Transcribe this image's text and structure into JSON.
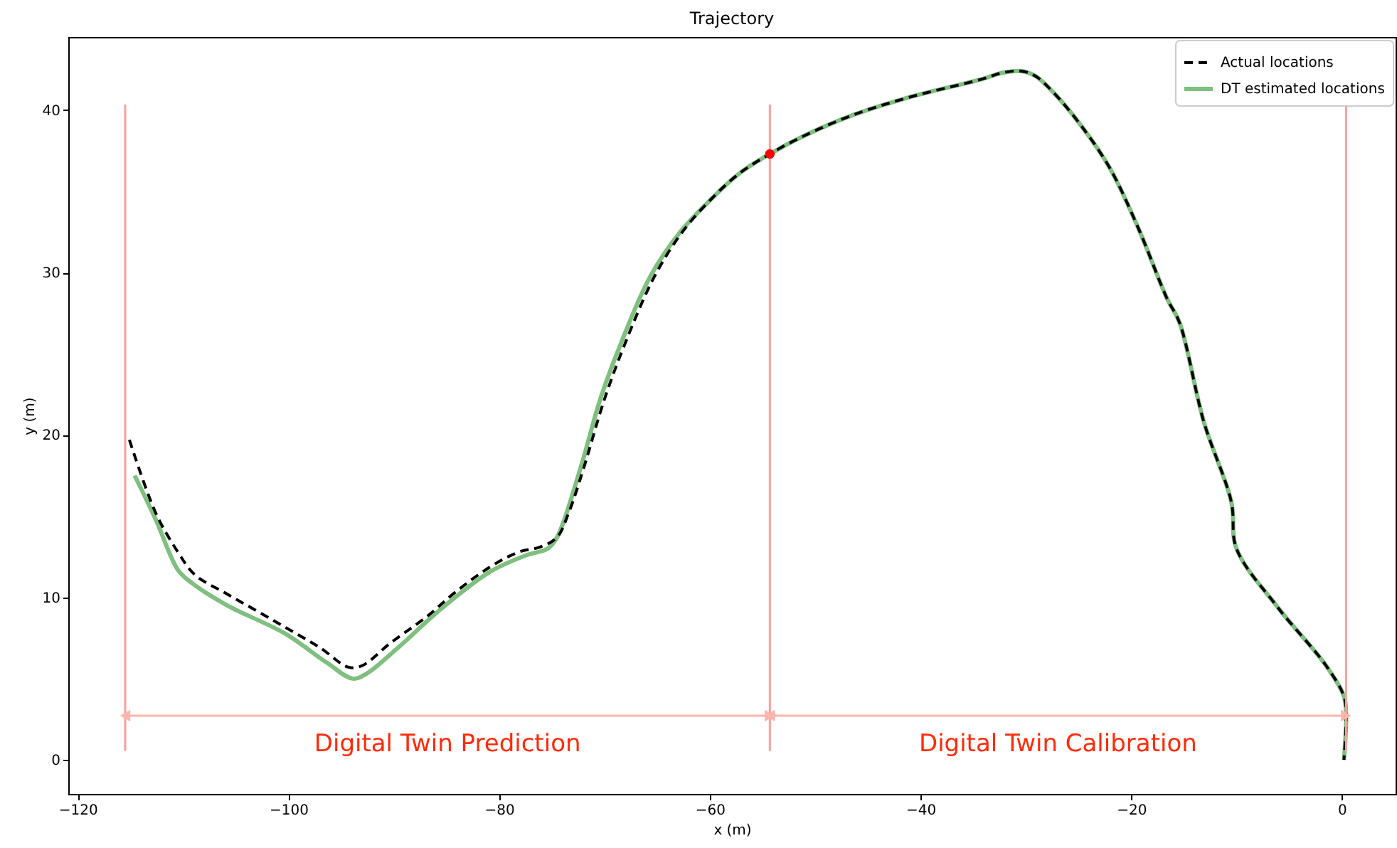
{
  "chart_data": {
    "type": "line",
    "title": "Trajectory",
    "xlabel": "x (m)",
    "ylabel": "y (m)",
    "xlim": [
      -120.9,
      5.1
    ],
    "ylim": [
      -2.1,
      44.5
    ],
    "xticks": [
      -120,
      -100,
      -80,
      -60,
      -40,
      -20,
      0
    ],
    "yticks": [
      0,
      10,
      20,
      30,
      40
    ],
    "grid": false,
    "legend": "top right",
    "series": [
      {
        "name": "Actual locations",
        "color": "#000000",
        "line_style": "dashed",
        "x": [
          -115.1,
          -112.6,
          -110.5,
          -108.9,
          -105.8,
          -100.4,
          -97.0,
          -94.3,
          -93.0,
          -90.3,
          -86.9,
          -84.2,
          -80.8,
          -78.1,
          -76.1,
          -74.5,
          -73.4,
          -72.0,
          -70.0,
          -68.0,
          -65.3,
          -62.6,
          -59.9,
          -57.2,
          -54.3,
          -51.1,
          -46.4,
          -41.0,
          -34.2,
          -32.2,
          -30.4,
          -29.1,
          -27.4,
          -24.7,
          -22.0,
          -19.3,
          -16.6,
          -15.4,
          -13.1,
          -10.5,
          -10.0,
          -6.1,
          -1.5,
          0.2,
          0.4,
          0.2
        ],
        "values": [
          19.7,
          15.2,
          12.8,
          11.4,
          10.2,
          8.2,
          6.9,
          5.7,
          5.8,
          7.2,
          8.8,
          10.3,
          11.9,
          12.8,
          13.1,
          13.7,
          15.2,
          17.9,
          22.2,
          25.7,
          29.7,
          32.5,
          34.5,
          36.1,
          37.3,
          38.4,
          39.7,
          40.8,
          41.9,
          42.3,
          42.4,
          42.1,
          41.1,
          39.0,
          36.4,
          32.7,
          28.4,
          26.9,
          20.8,
          15.9,
          13.0,
          9.4,
          5.8,
          3.9,
          2.7,
          0.0
        ]
      },
      {
        "name": "DT estimated locations",
        "color": "#7fbf7f",
        "line_style": "solid",
        "x": [
          -114.6,
          -112.6,
          -110.5,
          -109.2,
          -105.8,
          -100.4,
          -96.4,
          -93.9,
          -92.6,
          -89.6,
          -85.5,
          -80.8,
          -77.4,
          -75.4,
          -74.5,
          -72.3,
          -70.4,
          -68.4,
          -65.7,
          -62.8,
          -59.9,
          -57.2,
          -54.3,
          -51.1,
          -46.4,
          -41.0,
          -34.2,
          -32.2,
          -30.4,
          -29.1,
          -27.4,
          -24.7,
          -22.0,
          -19.3,
          -16.6,
          -15.4,
          -13.1,
          -10.5,
          -10.0,
          -6.1,
          -1.5,
          0.2,
          0.4,
          0.2
        ],
        "values": [
          17.5,
          14.8,
          11.7,
          10.9,
          9.5,
          7.8,
          6.0,
          5.0,
          5.3,
          6.9,
          9.3,
          11.6,
          12.6,
          13.0,
          13.7,
          17.9,
          22.2,
          25.7,
          29.7,
          32.5,
          34.5,
          36.1,
          37.3,
          38.4,
          39.7,
          40.8,
          41.9,
          42.3,
          42.4,
          42.1,
          41.1,
          39.0,
          36.4,
          32.7,
          28.4,
          26.9,
          20.8,
          15.9,
          13.0,
          9.4,
          5.8,
          3.9,
          2.7,
          0.0
        ]
      },
      {
        "color": "#f8a09a",
        "line_style": "solid",
        "x": [
          -115.5,
          -115.5
        ],
        "values": [
          0.6,
          40.3
        ]
      },
      {
        "color": "#f8a09a",
        "line_style": "solid",
        "x": [
          -54.3,
          -54.3
        ],
        "values": [
          0.6,
          40.3
        ]
      },
      {
        "color": "#f8a09a",
        "line_style": "solid",
        "x": [
          0.4,
          0.4
        ],
        "values": [
          0.6,
          40.3
        ]
      },
      {
        "type": "scatter",
        "color": "#ff0000",
        "marker": "circle",
        "x": [
          -54.3
        ],
        "values": [
          37.3
        ]
      }
    ],
    "annotations": [
      "Digital Twin Prediction",
      "Digital Twin Calibration"
    ]
  }
}
